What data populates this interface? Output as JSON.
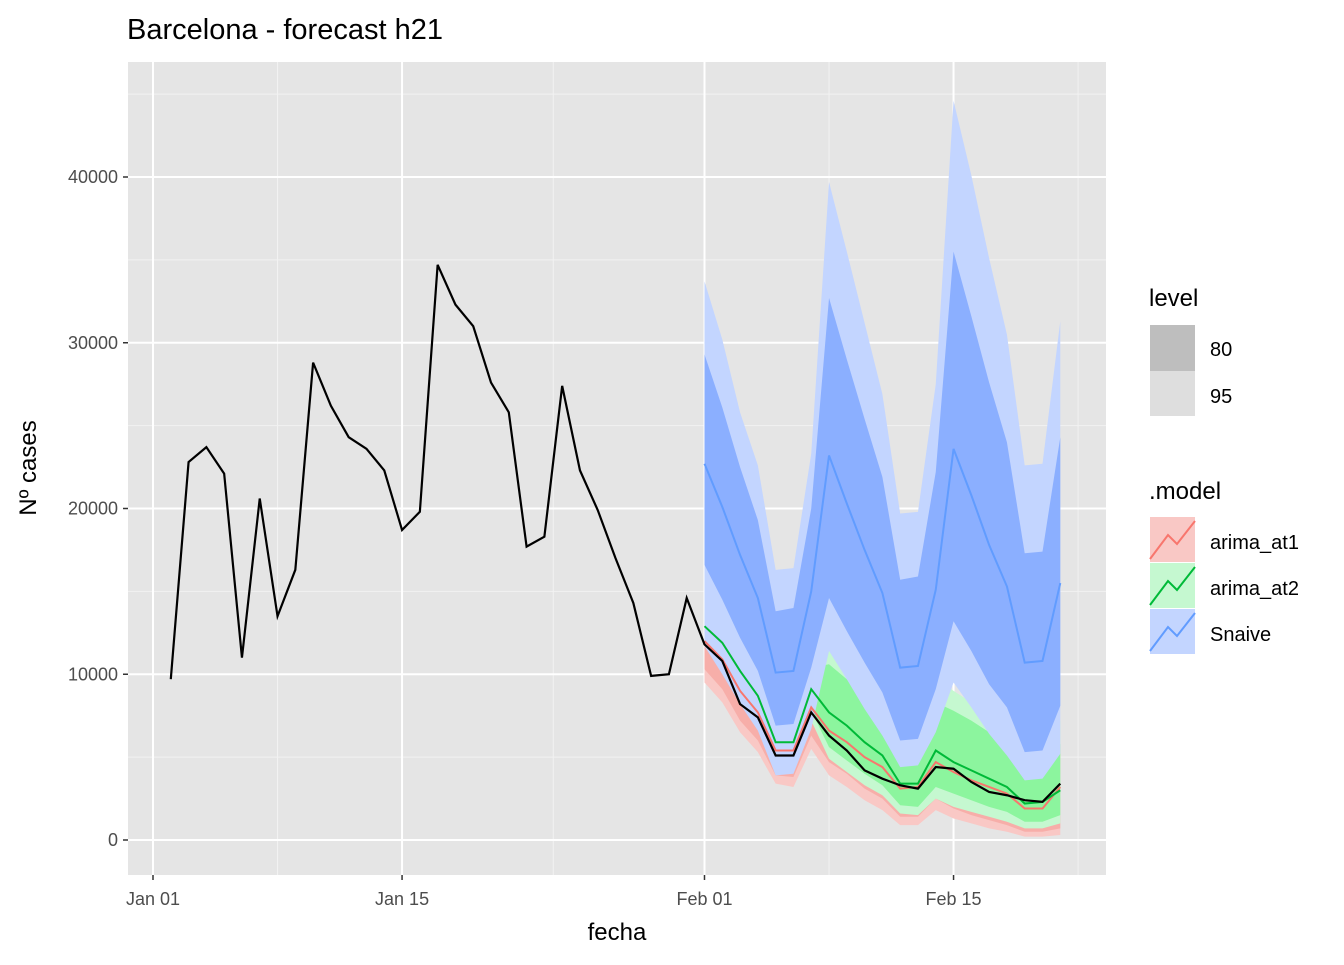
{
  "chart_data": {
    "type": "line",
    "title": "Barcelona - forecast h21",
    "xlabel": "fecha",
    "ylabel": "Nº cases",
    "ylim": [
      -2100,
      46400
    ],
    "yticks": [
      0,
      10000,
      20000,
      30000,
      40000
    ],
    "ytick_labels": [
      "0",
      "10000",
      "20000",
      "30000",
      "40000"
    ],
    "xticks": [
      "Jan 01",
      "Jan 15",
      "Feb 01",
      "Feb 15"
    ],
    "xlim": [
      "Dec 31",
      "Feb 22"
    ],
    "grid": true,
    "legend_position": "right",
    "legend_level": {
      "title": "level",
      "items": [
        "80",
        "95"
      ],
      "colors": [
        "#BEBEBE",
        "#DEDEDE"
      ]
    },
    "legend_model": {
      "title": ".model",
      "items": [
        "arima_at1",
        "arima_at2",
        "Snaive"
      ]
    },
    "actual": {
      "start": "Jan 02",
      "color": "#000000",
      "values": [
        9700,
        22800,
        23700,
        22100,
        11000,
        20600,
        13500,
        16300,
        28800,
        26200,
        24300,
        23600,
        22300,
        18700,
        19800,
        34700,
        32300,
        31000,
        27600,
        25800,
        17700,
        18300,
        27400,
        22300,
        19900,
        17000,
        14300,
        9900,
        10000,
        14600,
        11800,
        10800,
        8200,
        7400,
        5100,
        5100,
        7700,
        6300,
        5400,
        4200,
        3700,
        3300,
        3100,
        4400,
        4300,
        3500,
        2900,
        2700,
        2400,
        2300,
        3400
      ]
    },
    "forecast_start": "Feb 01",
    "series": [
      {
        "name": "arima_at1",
        "color": "#F8766D",
        "fill80": "#F7AEA9",
        "fill95": "#F9C8C5",
        "mean": [
          12000,
          10900,
          9000,
          7700,
          5400,
          5400,
          8000,
          6600,
          5900,
          5000,
          4400,
          3100,
          3200,
          4700,
          4100,
          3600,
          3200,
          2800,
          1900,
          1900,
          3200
        ],
        "lo80": [
          10300,
          9100,
          7200,
          6000,
          3900,
          3800,
          6300,
          4700,
          4000,
          3100,
          2500,
          1400,
          1400,
          2500,
          1900,
          1500,
          1200,
          900,
          500,
          500,
          700
        ],
        "hi80": [
          12800,
          11800,
          10000,
          8700,
          6300,
          6300,
          9200,
          8400,
          7800,
          6900,
          6200,
          4500,
          4600,
          6900,
          6300,
          5700,
          5100,
          4600,
          3300,
          3400,
          5300
        ],
        "lo95": [
          9500,
          8300,
          6500,
          5300,
          3400,
          3200,
          5500,
          3900,
          3200,
          2400,
          1800,
          900,
          900,
          1800,
          1300,
          1000,
          700,
          500,
          200,
          200,
          300
        ],
        "hi95": [
          13200,
          12200,
          10400,
          9100,
          6700,
          6700,
          9600,
          8800,
          8200,
          7300,
          6600,
          4900,
          5000,
          7300,
          6700,
          6100,
          5500,
          5000,
          3700,
          3800,
          5700
        ]
      },
      {
        "name": "arima_at2",
        "color": "#00BA38",
        "fill80": "#8CF59E",
        "fill95": "#C5F8D0",
        "mean": [
          12900,
          11900,
          10200,
          8700,
          5900,
          5900,
          9100,
          7700,
          6900,
          5900,
          5100,
          3400,
          3400,
          5400,
          4700,
          4200,
          3700,
          3200,
          2200,
          2300,
          3000
        ],
        "lo80": [
          12100,
          11000,
          9200,
          7700,
          5100,
          5000,
          7800,
          5600,
          4800,
          4000,
          3300,
          2100,
          2000,
          3200,
          2800,
          2400,
          2000,
          1700,
          1100,
          1100,
          1500
        ],
        "hi80": [
          13700,
          12800,
          11200,
          9700,
          6800,
          6900,
          10400,
          10600,
          9700,
          8500,
          7500,
          5200,
          5300,
          8300,
          7800,
          7200,
          6500,
          5800,
          4200,
          4400,
          5800
        ],
        "lo95": [
          11700,
          10500,
          8700,
          7200,
          4600,
          4500,
          7200,
          4900,
          4100,
          3300,
          2700,
          1600,
          1500,
          2500,
          2000,
          1700,
          1400,
          1100,
          700,
          700,
          1000
        ],
        "hi95": [
          14100,
          13300,
          11700,
          10200,
          7200,
          7300,
          11000,
          11500,
          10600,
          9400,
          8400,
          5900,
          6100,
          9800,
          9000,
          8300,
          7600,
          6800,
          5000,
          5300,
          7200
        ]
      },
      {
        "name": "Snaive",
        "color": "#619CFF",
        "fill80": "#8BAFFF",
        "fill95": "#C3D5FF",
        "mean": [
          22700,
          20100,
          17200,
          14600,
          10100,
          10200,
          15000,
          23200,
          20300,
          17500,
          14900,
          10400,
          10500,
          15100,
          23600,
          20800,
          17800,
          15300,
          10700,
          10800,
          15500
        ],
        "lo80": [
          16600,
          14500,
          12200,
          10200,
          6900,
          7000,
          10400,
          14600,
          12600,
          10700,
          8900,
          6000,
          6100,
          9100,
          13200,
          11400,
          9400,
          8000,
          5300,
          5400,
          8100
        ],
        "hi80": [
          29300,
          26100,
          22500,
          19300,
          13800,
          14000,
          20000,
          32700,
          29000,
          25400,
          21900,
          15700,
          15900,
          22200,
          35500,
          31600,
          27600,
          24000,
          17300,
          17400,
          24300
        ],
        "lo95": [
          11700,
          10000,
          8200,
          6600,
          3900,
          4000,
          6700,
          11400,
          9700,
          7900,
          6300,
          4400,
          4500,
          6500,
          9500,
          8000,
          6400,
          5100,
          3600,
          3700,
          5200
        ],
        "hi95": [
          33700,
          30200,
          25800,
          22600,
          16300,
          16400,
          23300,
          39700,
          35500,
          31200,
          26900,
          19700,
          19800,
          27500,
          44600,
          40100,
          35100,
          30500,
          22600,
          22700,
          31300
        ]
      }
    ]
  }
}
